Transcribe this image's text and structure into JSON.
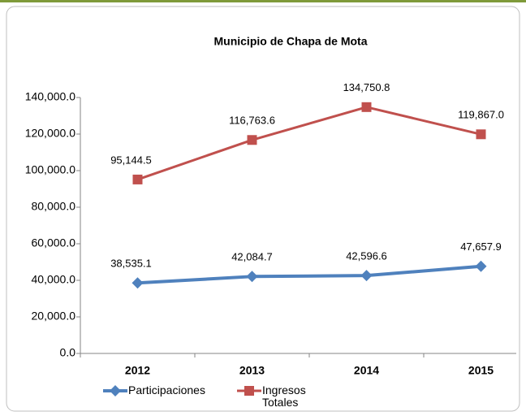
{
  "chart_data": {
    "type": "line",
    "title": "Municipio de Chapa de Mota",
    "categories": [
      "2012",
      "2013",
      "2014",
      "2015"
    ],
    "series": [
      {
        "name": "Participaciones",
        "color": "#4f81bd",
        "values": [
          38535.1,
          42084.7,
          42596.6,
          47657.9
        ],
        "value_labels": [
          "38,535.1",
          "42,084.7",
          "42,596.6",
          "47,657.9"
        ]
      },
      {
        "name": "Ingresos Totales",
        "color": "#c0504d",
        "values": [
          95144.5,
          116763.6,
          134750.8,
          119867.0
        ],
        "value_labels": [
          "95,144.5",
          "116,763.6",
          "134,750.8",
          "119,867.0"
        ]
      }
    ],
    "ylim": [
      0,
      140000
    ],
    "yticks": [
      {
        "value": 0,
        "label": "0.0"
      },
      {
        "value": 20000,
        "label": "20,000.0"
      },
      {
        "value": 40000,
        "label": "40,000.0"
      },
      {
        "value": 60000,
        "label": "60,000.0"
      },
      {
        "value": 80000,
        "label": "80,000.0"
      },
      {
        "value": 100000,
        "label": "100,000.0"
      },
      {
        "value": 120000,
        "label": "120,000.0"
      },
      {
        "value": 140000,
        "label": "140,000.0"
      }
    ],
    "legend": "bottom"
  }
}
